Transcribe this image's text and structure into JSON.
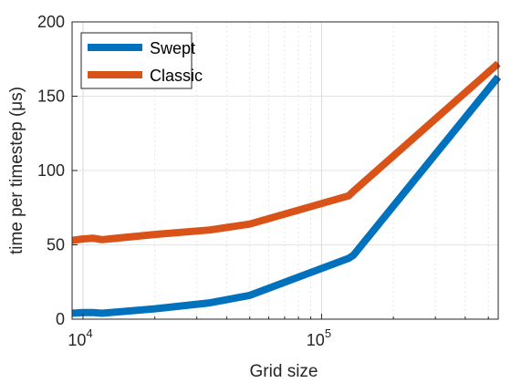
{
  "chart_data": {
    "type": "line",
    "title": "",
    "xlabel": "Grid size",
    "ylabel": "time per timestep (μs)",
    "xscale": "log",
    "xlim": [
      9000,
      550000
    ],
    "ylim": [
      0,
      200
    ],
    "x_ticks": [
      10000,
      100000
    ],
    "x_tick_labels": [
      {
        "base": "10",
        "exp": "4"
      },
      {
        "base": "10",
        "exp": "5"
      }
    ],
    "y_ticks": [
      0,
      50,
      100,
      150,
      200
    ],
    "y_tick_labels": [
      "0",
      "50",
      "100",
      "150",
      "200"
    ],
    "grid": true,
    "legend_position": "top-left",
    "series": [
      {
        "name": "Swept",
        "color": "#0072BD",
        "points": [
          {
            "x": 9000,
            "y": 4
          },
          {
            "x": 10000,
            "y": 4.5
          },
          {
            "x": 11000,
            "y": 4.5
          },
          {
            "x": 12000,
            "y": 4
          },
          {
            "x": 20000,
            "y": 7
          },
          {
            "x": 34000,
            "y": 11
          },
          {
            "x": 50000,
            "y": 16
          },
          {
            "x": 130000,
            "y": 41
          },
          {
            "x": 136000,
            "y": 43
          },
          {
            "x": 550000,
            "y": 163
          }
        ]
      },
      {
        "name": "Classic",
        "color": "#D95319",
        "points": [
          {
            "x": 9000,
            "y": 53
          },
          {
            "x": 10000,
            "y": 54
          },
          {
            "x": 11000,
            "y": 54.5
          },
          {
            "x": 12000,
            "y": 53.5
          },
          {
            "x": 20000,
            "y": 57
          },
          {
            "x": 34000,
            "y": 60
          },
          {
            "x": 50000,
            "y": 64
          },
          {
            "x": 130000,
            "y": 83
          },
          {
            "x": 136000,
            "y": 86
          },
          {
            "x": 550000,
            "y": 172
          }
        ]
      }
    ]
  }
}
